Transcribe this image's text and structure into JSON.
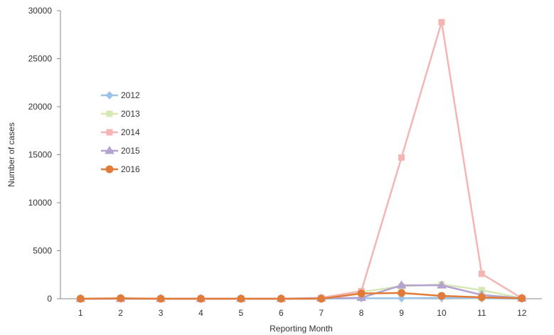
{
  "chart_data": {
    "type": "line",
    "title": "",
    "xlabel": "Reporting Month",
    "ylabel": "Number of cases",
    "x": [
      1,
      2,
      3,
      4,
      5,
      6,
      7,
      8,
      9,
      10,
      11,
      12
    ],
    "ylim": [
      0,
      30000
    ],
    "yticks": [
      0,
      5000,
      10000,
      15000,
      20000,
      25000,
      30000
    ],
    "grid": false,
    "legend_position": "left",
    "series": [
      {
        "name": "2012",
        "color": "#9dc3e6",
        "marker": "diamond",
        "values": [
          0,
          0,
          0,
          0,
          0,
          0,
          0,
          50,
          50,
          100,
          50,
          0
        ]
      },
      {
        "name": "2013",
        "color": "#d6e8b4",
        "marker": "square",
        "values": [
          0,
          0,
          0,
          0,
          0,
          0,
          50,
          700,
          1300,
          1500,
          900,
          50
        ]
      },
      {
        "name": "2014",
        "color": "#f4b6b4",
        "marker": "square",
        "values": [
          0,
          0,
          0,
          0,
          0,
          0,
          100,
          800,
          14700,
          28800,
          2600,
          50
        ]
      },
      {
        "name": "2015",
        "color": "#b4a2cf",
        "marker": "triangle",
        "values": [
          0,
          0,
          0,
          0,
          0,
          0,
          50,
          100,
          1400,
          1400,
          400,
          50
        ]
      },
      {
        "name": "2016",
        "color": "#e07b39",
        "marker": "circle",
        "values": [
          0,
          50,
          0,
          0,
          0,
          0,
          0,
          550,
          600,
          300,
          150,
          50
        ]
      }
    ]
  }
}
